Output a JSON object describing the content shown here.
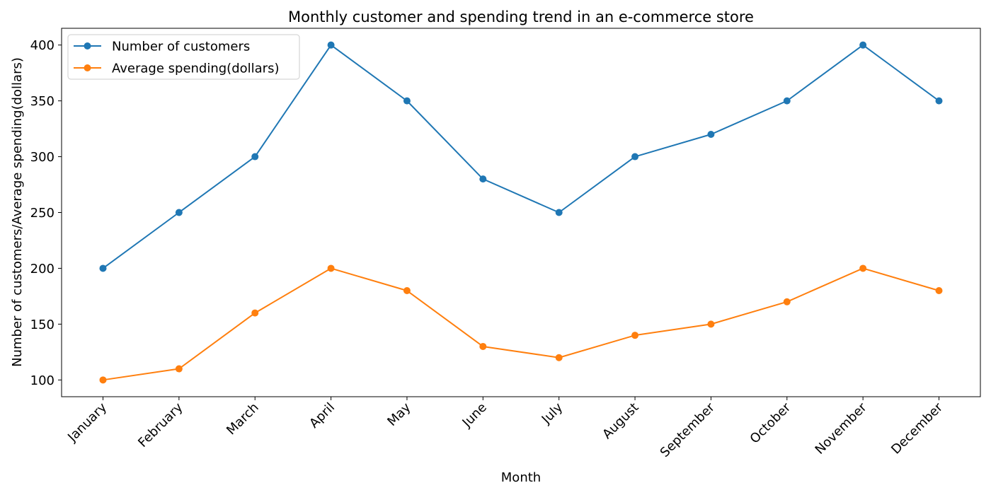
{
  "chart_data": {
    "type": "line",
    "title": "Monthly customer and spending trend in an e-commerce store",
    "xlabel": "Month",
    "ylabel": "Number of customers/Average spending(dollars)",
    "categories": [
      "January",
      "February",
      "March",
      "April",
      "May",
      "June",
      "July",
      "August",
      "September",
      "October",
      "November",
      "December"
    ],
    "series": [
      {
        "name": "Number of customers",
        "color": "#1f77b4",
        "values": [
          200,
          250,
          300,
          400,
          350,
          280,
          250,
          300,
          320,
          350,
          400,
          350
        ]
      },
      {
        "name": "Average spending(dollars)",
        "color": "#ff7f0e",
        "values": [
          100,
          110,
          160,
          200,
          180,
          130,
          120,
          140,
          150,
          170,
          200,
          180
        ]
      }
    ],
    "ylim": [
      85,
      415
    ],
    "yticks": [
      100,
      150,
      200,
      250,
      300,
      350,
      400
    ],
    "grid": false,
    "legend_position": "upper-left",
    "marker": "circle"
  }
}
